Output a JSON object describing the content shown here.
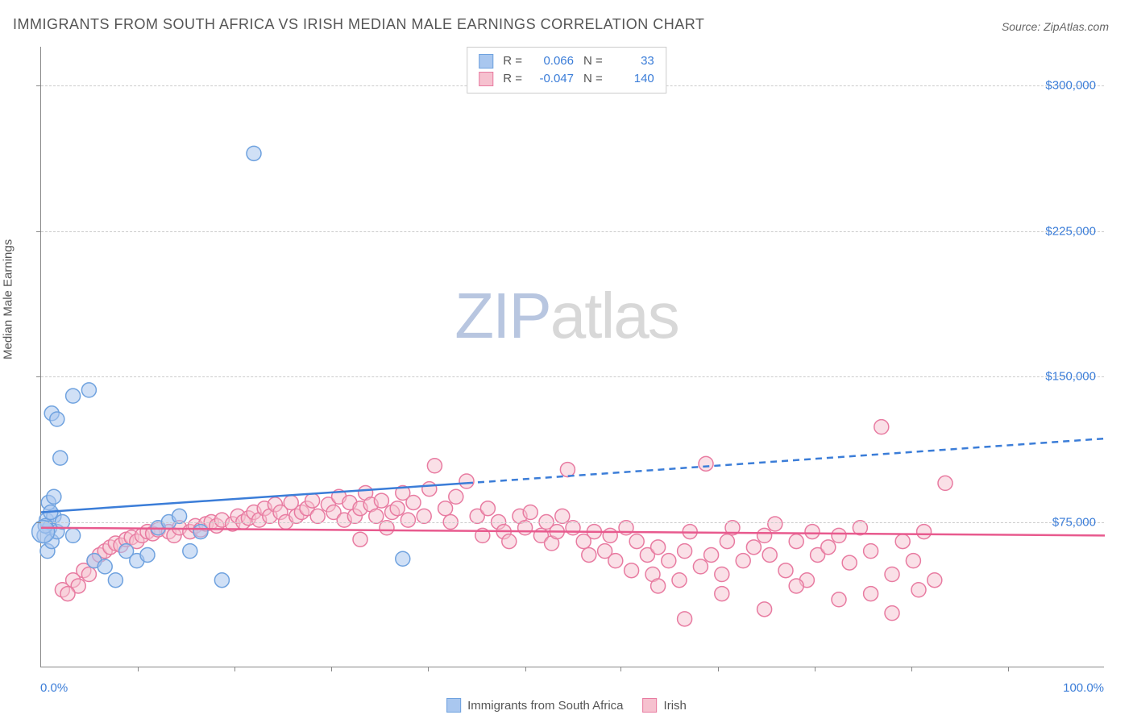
{
  "title": "IMMIGRANTS FROM SOUTH AFRICA VS IRISH MEDIAN MALE EARNINGS CORRELATION CHART",
  "source_label": "Source:",
  "source_value": "ZipAtlas.com",
  "watermark": {
    "zip": "ZIP",
    "atlas": "atlas"
  },
  "y_axis_label": "Median Male Earnings",
  "chart": {
    "type": "scatter",
    "background_color": "#ffffff",
    "grid_color": "#cccccc",
    "axis_color": "#888888",
    "text_color": "#555555",
    "value_color": "#3b7dd8",
    "xlim": [
      0,
      100
    ],
    "ylim": [
      0,
      320000
    ],
    "x_tick_label_left": "0.0%",
    "x_tick_label_right": "100.0%",
    "y_ticks": [
      {
        "value": 75000,
        "label": "$75,000"
      },
      {
        "value": 150000,
        "label": "$150,000"
      },
      {
        "value": 225000,
        "label": "$225,000"
      },
      {
        "value": 300000,
        "label": "$300,000"
      }
    ],
    "x_minor_ticks": [
      9.1,
      18.2,
      27.3,
      36.4,
      45.5,
      54.5,
      63.6,
      72.7,
      81.8,
      90.9
    ],
    "marker_radius": 9,
    "marker_stroke_width": 1.5,
    "series": [
      {
        "key": "south_africa",
        "label": "Immigrants from South Africa",
        "fill": "#a9c7ef",
        "stroke": "#6fa2df",
        "fill_opacity": 0.55,
        "R": "0.066",
        "N": "33",
        "R_label": "R =",
        "N_label": "N =",
        "trend": {
          "solid": {
            "x1": 0,
            "y1": 80000,
            "x2": 40,
            "y2": 95000
          },
          "dashed": {
            "x1": 40,
            "y1": 95000,
            "x2": 100,
            "y2": 118000
          },
          "color": "#3b7dd8",
          "width": 2.5
        },
        "points": [
          {
            "x": 0.5,
            "y": 76000
          },
          {
            "x": 0.8,
            "y": 72000
          },
          {
            "x": 0.3,
            "y": 68000
          },
          {
            "x": 0.7,
            "y": 85000
          },
          {
            "x": 1.2,
            "y": 78000
          },
          {
            "x": 0.6,
            "y": 60000
          },
          {
            "x": 1.0,
            "y": 65000
          },
          {
            "x": 1.5,
            "y": 70000
          },
          {
            "x": 1.0,
            "y": 131000
          },
          {
            "x": 1.5,
            "y": 128000
          },
          {
            "x": 3.0,
            "y": 140000
          },
          {
            "x": 4.5,
            "y": 143000
          },
          {
            "x": 1.8,
            "y": 108000
          },
          {
            "x": 1.2,
            "y": 88000
          },
          {
            "x": 0.4,
            "y": 73000
          },
          {
            "x": 0.9,
            "y": 80000
          },
          {
            "x": 2.0,
            "y": 75000
          },
          {
            "x": 3.0,
            "y": 68000
          },
          {
            "x": 5.0,
            "y": 55000
          },
          {
            "x": 6.0,
            "y": 52000
          },
          {
            "x": 7.0,
            "y": 45000
          },
          {
            "x": 8.0,
            "y": 60000
          },
          {
            "x": 9.0,
            "y": 55000
          },
          {
            "x": 10.0,
            "y": 58000
          },
          {
            "x": 11.0,
            "y": 72000
          },
          {
            "x": 12.0,
            "y": 75000
          },
          {
            "x": 14.0,
            "y": 60000
          },
          {
            "x": 17.0,
            "y": 45000
          },
          {
            "x": 15.0,
            "y": 70000
          },
          {
            "x": 13.0,
            "y": 78000
          },
          {
            "x": 20.0,
            "y": 265000
          },
          {
            "x": 34.0,
            "y": 56000
          },
          {
            "x": 0.2,
            "y": 70000,
            "r": 14
          }
        ]
      },
      {
        "key": "irish",
        "label": "Irish",
        "fill": "#f6c1cf",
        "stroke": "#e87ba1",
        "fill_opacity": 0.5,
        "R": "-0.047",
        "N": "140",
        "R_label": "R =",
        "N_label": "N =",
        "trend": {
          "solid": {
            "x1": 0,
            "y1": 72000,
            "x2": 100,
            "y2": 68000
          },
          "color": "#e85a8e",
          "width": 2.5
        },
        "points": [
          {
            "x": 2,
            "y": 40000
          },
          {
            "x": 3,
            "y": 45000
          },
          {
            "x": 4,
            "y": 50000
          },
          {
            "x": 4.5,
            "y": 48000
          },
          {
            "x": 5,
            "y": 55000
          },
          {
            "x": 5.5,
            "y": 58000
          },
          {
            "x": 6,
            "y": 60000
          },
          {
            "x": 6.5,
            "y": 62000
          },
          {
            "x": 7,
            "y": 64000
          },
          {
            "x": 7.5,
            "y": 63000
          },
          {
            "x": 8,
            "y": 66000
          },
          {
            "x": 8.5,
            "y": 67000
          },
          {
            "x": 9,
            "y": 65000
          },
          {
            "x": 9.5,
            "y": 68000
          },
          {
            "x": 10,
            "y": 70000
          },
          {
            "x": 10.5,
            "y": 69000
          },
          {
            "x": 11,
            "y": 71000
          },
          {
            "x": 12,
            "y": 70000
          },
          {
            "x": 12.5,
            "y": 68000
          },
          {
            "x": 13,
            "y": 72000
          },
          {
            "x": 14,
            "y": 70000
          },
          {
            "x": 14.5,
            "y": 73000
          },
          {
            "x": 15,
            "y": 71000
          },
          {
            "x": 15.5,
            "y": 74000
          },
          {
            "x": 16,
            "y": 75000
          },
          {
            "x": 16.5,
            "y": 73000
          },
          {
            "x": 17,
            "y": 76000
          },
          {
            "x": 18,
            "y": 74000
          },
          {
            "x": 18.5,
            "y": 78000
          },
          {
            "x": 19,
            "y": 75000
          },
          {
            "x": 19.5,
            "y": 77000
          },
          {
            "x": 20,
            "y": 80000
          },
          {
            "x": 20.5,
            "y": 76000
          },
          {
            "x": 21,
            "y": 82000
          },
          {
            "x": 21.5,
            "y": 78000
          },
          {
            "x": 22,
            "y": 84000
          },
          {
            "x": 22.5,
            "y": 80000
          },
          {
            "x": 23,
            "y": 75000
          },
          {
            "x": 23.5,
            "y": 85000
          },
          {
            "x": 24,
            "y": 78000
          },
          {
            "x": 24.5,
            "y": 80000
          },
          {
            "x": 25,
            "y": 82000
          },
          {
            "x": 25.5,
            "y": 86000
          },
          {
            "x": 26,
            "y": 78000
          },
          {
            "x": 27,
            "y": 84000
          },
          {
            "x": 27.5,
            "y": 80000
          },
          {
            "x": 28,
            "y": 88000
          },
          {
            "x": 28.5,
            "y": 76000
          },
          {
            "x": 29,
            "y": 85000
          },
          {
            "x": 29.5,
            "y": 78000
          },
          {
            "x": 30,
            "y": 82000
          },
          {
            "x": 30.5,
            "y": 90000
          },
          {
            "x": 31,
            "y": 84000
          },
          {
            "x": 31.5,
            "y": 78000
          },
          {
            "x": 32,
            "y": 86000
          },
          {
            "x": 33,
            "y": 80000
          },
          {
            "x": 33.5,
            "y": 82000
          },
          {
            "x": 34,
            "y": 90000
          },
          {
            "x": 34.5,
            "y": 76000
          },
          {
            "x": 35,
            "y": 85000
          },
          {
            "x": 36,
            "y": 78000
          },
          {
            "x": 36.5,
            "y": 92000
          },
          {
            "x": 37,
            "y": 104000
          },
          {
            "x": 38,
            "y": 82000
          },
          {
            "x": 38.5,
            "y": 75000
          },
          {
            "x": 39,
            "y": 88000
          },
          {
            "x": 40,
            "y": 96000
          },
          {
            "x": 41,
            "y": 78000
          },
          {
            "x": 41.5,
            "y": 68000
          },
          {
            "x": 42,
            "y": 82000
          },
          {
            "x": 43,
            "y": 75000
          },
          {
            "x": 43.5,
            "y": 70000
          },
          {
            "x": 44,
            "y": 65000
          },
          {
            "x": 45,
            "y": 78000
          },
          {
            "x": 45.5,
            "y": 72000
          },
          {
            "x": 46,
            "y": 80000
          },
          {
            "x": 47,
            "y": 68000
          },
          {
            "x": 47.5,
            "y": 75000
          },
          {
            "x": 48,
            "y": 64000
          },
          {
            "x": 48.5,
            "y": 70000
          },
          {
            "x": 49,
            "y": 78000
          },
          {
            "x": 49.5,
            "y": 102000
          },
          {
            "x": 50,
            "y": 72000
          },
          {
            "x": 51,
            "y": 65000
          },
          {
            "x": 51.5,
            "y": 58000
          },
          {
            "x": 52,
            "y": 70000
          },
          {
            "x": 53,
            "y": 60000
          },
          {
            "x": 53.5,
            "y": 68000
          },
          {
            "x": 54,
            "y": 55000
          },
          {
            "x": 55,
            "y": 72000
          },
          {
            "x": 55.5,
            "y": 50000
          },
          {
            "x": 56,
            "y": 65000
          },
          {
            "x": 57,
            "y": 58000
          },
          {
            "x": 57.5,
            "y": 48000
          },
          {
            "x": 58,
            "y": 62000
          },
          {
            "x": 59,
            "y": 55000
          },
          {
            "x": 60,
            "y": 45000
          },
          {
            "x": 60.5,
            "y": 60000
          },
          {
            "x": 61,
            "y": 70000
          },
          {
            "x": 62,
            "y": 52000
          },
          {
            "x": 62.5,
            "y": 105000
          },
          {
            "x": 63,
            "y": 58000
          },
          {
            "x": 64,
            "y": 48000
          },
          {
            "x": 64.5,
            "y": 65000
          },
          {
            "x": 65,
            "y": 72000
          },
          {
            "x": 66,
            "y": 55000
          },
          {
            "x": 67,
            "y": 62000
          },
          {
            "x": 68,
            "y": 68000
          },
          {
            "x": 68.5,
            "y": 58000
          },
          {
            "x": 69,
            "y": 74000
          },
          {
            "x": 70,
            "y": 50000
          },
          {
            "x": 71,
            "y": 65000
          },
          {
            "x": 72,
            "y": 45000
          },
          {
            "x": 72.5,
            "y": 70000
          },
          {
            "x": 73,
            "y": 58000
          },
          {
            "x": 74,
            "y": 62000
          },
          {
            "x": 75,
            "y": 68000
          },
          {
            "x": 76,
            "y": 54000
          },
          {
            "x": 77,
            "y": 72000
          },
          {
            "x": 78,
            "y": 60000
          },
          {
            "x": 79,
            "y": 124000
          },
          {
            "x": 80,
            "y": 48000
          },
          {
            "x": 81,
            "y": 65000
          },
          {
            "x": 82,
            "y": 55000
          },
          {
            "x": 82.5,
            "y": 40000
          },
          {
            "x": 83,
            "y": 70000
          },
          {
            "x": 84,
            "y": 45000
          },
          {
            "x": 85,
            "y": 95000
          },
          {
            "x": 60.5,
            "y": 25000
          },
          {
            "x": 68,
            "y": 30000
          },
          {
            "x": 75,
            "y": 35000
          },
          {
            "x": 80,
            "y": 28000
          },
          {
            "x": 58,
            "y": 42000
          },
          {
            "x": 64,
            "y": 38000
          },
          {
            "x": 71,
            "y": 42000
          },
          {
            "x": 78,
            "y": 38000
          },
          {
            "x": 3.5,
            "y": 42000
          },
          {
            "x": 2.5,
            "y": 38000
          },
          {
            "x": 30,
            "y": 66000
          },
          {
            "x": 32.5,
            "y": 72000
          }
        ]
      }
    ]
  }
}
